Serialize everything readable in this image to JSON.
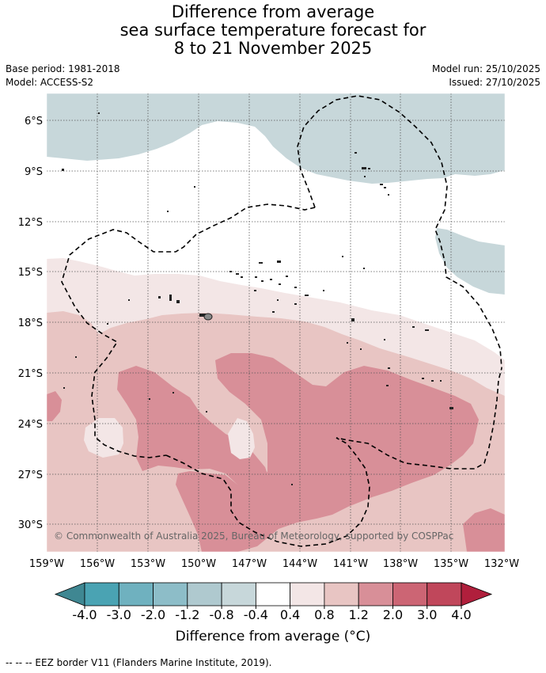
{
  "title": {
    "line1": "Difference from average",
    "line2": "sea surface temperature forecast for",
    "line3": "8 to 21 November 2025"
  },
  "meta": {
    "base_period": "Base period: 1981-2018",
    "model": "Model: ACCESS-S2",
    "model_run": "Model run: 25/10/2025",
    "issued": "Issued: 27/10/2025"
  },
  "map": {
    "lat_labels": [
      "6°S",
      "9°S",
      "12°S",
      "15°S",
      "18°S",
      "21°S",
      "24°S",
      "27°S",
      "30°S"
    ],
    "lon_labels": [
      "159°W",
      "156°W",
      "153°W",
      "150°W",
      "147°W",
      "144°W",
      "141°W",
      "138°W",
      "135°W",
      "132°W"
    ],
    "copyright": "© Commonwealth of Australia 2025, Bureau of Meteorology, supported by COSPPac"
  },
  "colorbar": {
    "colors": [
      "#3f8792",
      "#4aa3b3",
      "#6fb1bf",
      "#8dbdc8",
      "#afc9cf",
      "#c7d7da",
      "#ffffff",
      "#f3e6e6",
      "#e8c5c3",
      "#d88f98",
      "#cc6574",
      "#c0475b",
      "#b01f3c"
    ],
    "tick_labels": [
      "-4.0",
      "-3.0",
      "-2.0",
      "-1.2",
      "-0.8",
      "-0.4",
      "0.4",
      "0.8",
      "1.2",
      "2.0",
      "3.0",
      "4.0"
    ],
    "label": "Difference from average (°C)"
  },
  "footnote": "-- -- -- EEZ border V11 (Flanders Marine Institute, 2019)."
}
